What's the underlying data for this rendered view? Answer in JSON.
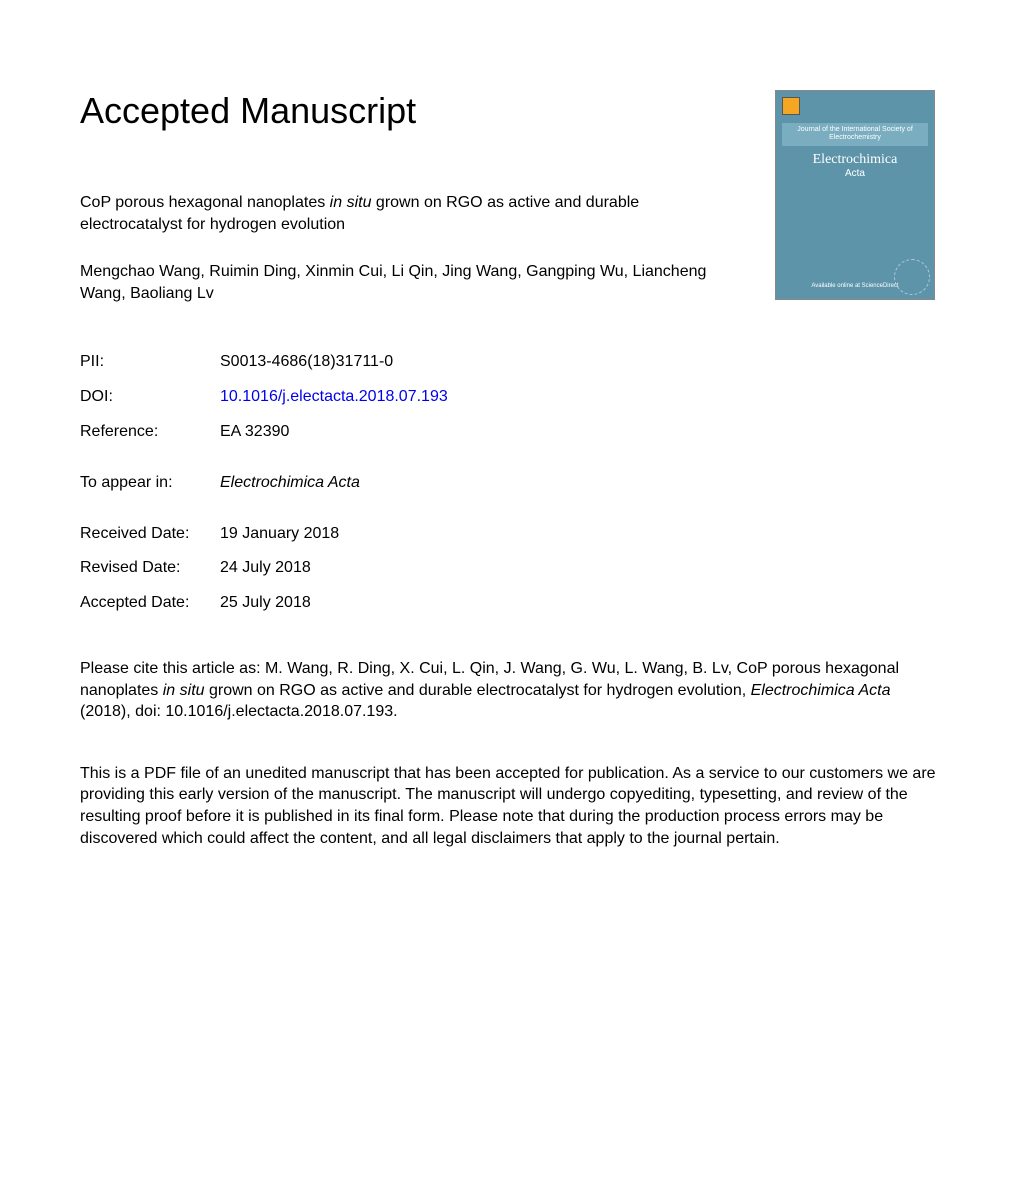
{
  "heading": "Accepted Manuscript",
  "article": {
    "title_pre": "CoP porous hexagonal nanoplates ",
    "title_italic": "in situ",
    "title_post": " grown on RGO as active and durable electrocatalyst for hydrogen evolution",
    "authors": "Mengchao Wang, Ruimin Ding, Xinmin Cui, Li Qin, Jing Wang, Gangping Wu, Liancheng Wang, Baoliang Lv"
  },
  "meta": {
    "pii_label": "PII:",
    "pii_value": "S0013-4686(18)31711-0",
    "doi_label": "DOI:",
    "doi_value": "10.1016/j.electacta.2018.07.193",
    "ref_label": "Reference:",
    "ref_value": "EA 32390",
    "appear_label": "To appear in:",
    "appear_value": "Electrochimica Acta",
    "received_label": "Received Date:",
    "received_value": "19 January 2018",
    "revised_label": "Revised Date:",
    "revised_value": "24 July 2018",
    "accepted_label": "Accepted Date:",
    "accepted_value": "25 July 2018"
  },
  "citation": {
    "pre": "Please cite this article as: M. Wang, R. Ding, X. Cui, L. Qin, J. Wang, G. Wu, L. Wang, B. Lv, CoP porous hexagonal nanoplates ",
    "italic1": "in situ",
    "mid": " grown on RGO as active and durable electrocatalyst for hydrogen evolution, ",
    "italic2": "Electrochimica Acta",
    "post": " (2018), doi: 10.1016/j.electacta.2018.07.193."
  },
  "disclaimer": "This is a PDF file of an unedited manuscript that has been accepted for publication. As a service to our customers we are providing this early version of the manuscript. The manuscript will undergo copyediting, typesetting, and review of the resulting proof before it is published in its final form. Please note that during the production process errors may be discovered which could affect the content, and all legal disclaimers that apply to the journal pertain.",
  "cover": {
    "band_text": "Journal of the International Society of Electrochemistry",
    "title": "Electrochimica",
    "subtitle": "Acta",
    "footer": "Available online at\nScienceDirect",
    "bg_color": "#5d94a9",
    "band_color": "#7aadbf"
  },
  "colors": {
    "text": "#000000",
    "link": "#0000ee",
    "background": "#ffffff"
  },
  "typography": {
    "heading_fontsize": 36,
    "body_fontsize": 16,
    "line_height": 1.35
  }
}
